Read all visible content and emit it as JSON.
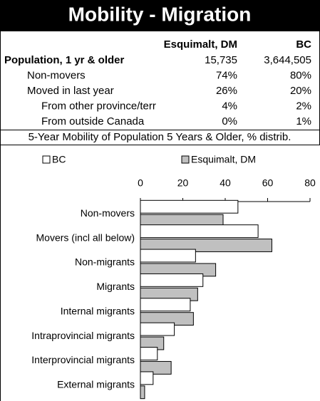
{
  "header": {
    "title": "Mobility - Migration"
  },
  "table": {
    "columns": [
      "Esquimalt, DM",
      "BC"
    ],
    "rows": [
      [
        "Population, 1 yr & older",
        "15,735",
        "3,644,505"
      ],
      [
        "Non-movers",
        "74%",
        "80%"
      ],
      [
        "Moved in last year",
        "26%",
        "20%"
      ],
      [
        "From other province/terr",
        "4%",
        "2%"
      ],
      [
        "From outside Canada",
        "0%",
        "1%"
      ]
    ]
  },
  "chart_data": {
    "type": "hbar",
    "title": "5-Year Mobility of Population 5 Years & Older, % distrib.",
    "categories": [
      "Non-movers",
      "Movers (incl all below)",
      "Non-migrants",
      "Migrants",
      "Internal migrants",
      "Intraprovincial migrants",
      "Interprovincial migrants",
      "External migrants"
    ],
    "series": [
      {
        "name": "BC",
        "color": "#ffffff",
        "values": [
          46,
          55.5,
          26,
          29.5,
          23.5,
          16,
          8,
          6
        ]
      },
      {
        "name": "Esquimalt, DM",
        "color": "#c0c0c0",
        "values": [
          39,
          62,
          35.5,
          27,
          25,
          11,
          14.5,
          2
        ]
      }
    ],
    "xlim": [
      0,
      80
    ],
    "xticks": [
      0,
      20,
      40,
      60,
      80
    ],
    "grid": false
  }
}
